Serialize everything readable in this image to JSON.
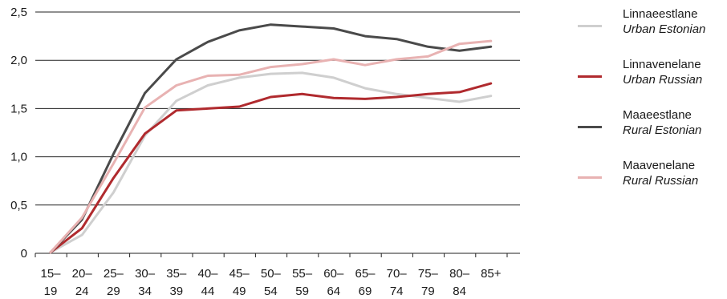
{
  "chart_data": {
    "type": "line",
    "title": "",
    "xlabel": "",
    "ylabel": "",
    "categories": [
      [
        "15–",
        "19"
      ],
      [
        "20–",
        "24"
      ],
      [
        "25–",
        "29"
      ],
      [
        "30–",
        "34"
      ],
      [
        "35–",
        "39"
      ],
      [
        "40–",
        "44"
      ],
      [
        "45–",
        "49"
      ],
      [
        "50–",
        "54"
      ],
      [
        "55–",
        "59"
      ],
      [
        "60–",
        "64"
      ],
      [
        "65–",
        "69"
      ],
      [
        "70–",
        "74"
      ],
      [
        "75–",
        "79"
      ],
      [
        "80–",
        "84"
      ],
      [
        "85+",
        ""
      ]
    ],
    "ylim": [
      0,
      2.5
    ],
    "yticks": [
      "0",
      "0,5",
      "1,0",
      "1,5",
      "2,0",
      "2,5"
    ],
    "grid": true,
    "legend_position": "right",
    "series": [
      {
        "label_et": "Linnaeestlane",
        "label_en": "Urban Estonian",
        "color": "#cfcfcf",
        "values": [
          0.01,
          0.19,
          0.63,
          1.22,
          1.58,
          1.74,
          1.82,
          1.86,
          1.87,
          1.82,
          1.71,
          1.65,
          1.61,
          1.57,
          1.63
        ]
      },
      {
        "label_et": "Linnavenelane",
        "label_en": "Urban Russian",
        "color": "#b02a2e",
        "values": [
          0.01,
          0.26,
          0.78,
          1.24,
          1.48,
          1.5,
          1.52,
          1.62,
          1.65,
          1.61,
          1.6,
          1.62,
          1.65,
          1.67,
          1.76
        ]
      },
      {
        "label_et": "Maaeestlane",
        "label_en": "Rural Estonian",
        "color": "#4a4a4a",
        "values": [
          0.01,
          0.35,
          1.03,
          1.66,
          2.01,
          2.19,
          2.31,
          2.37,
          2.35,
          2.33,
          2.25,
          2.22,
          2.14,
          2.1,
          2.14
        ]
      },
      {
        "label_et": "Maavenelane",
        "label_en": "Rural Russian",
        "color": "#e8b2b2",
        "values": [
          0.01,
          0.37,
          0.93,
          1.51,
          1.74,
          1.84,
          1.85,
          1.93,
          1.96,
          2.01,
          1.95,
          2.01,
          2.04,
          2.17,
          2.2
        ]
      }
    ]
  }
}
